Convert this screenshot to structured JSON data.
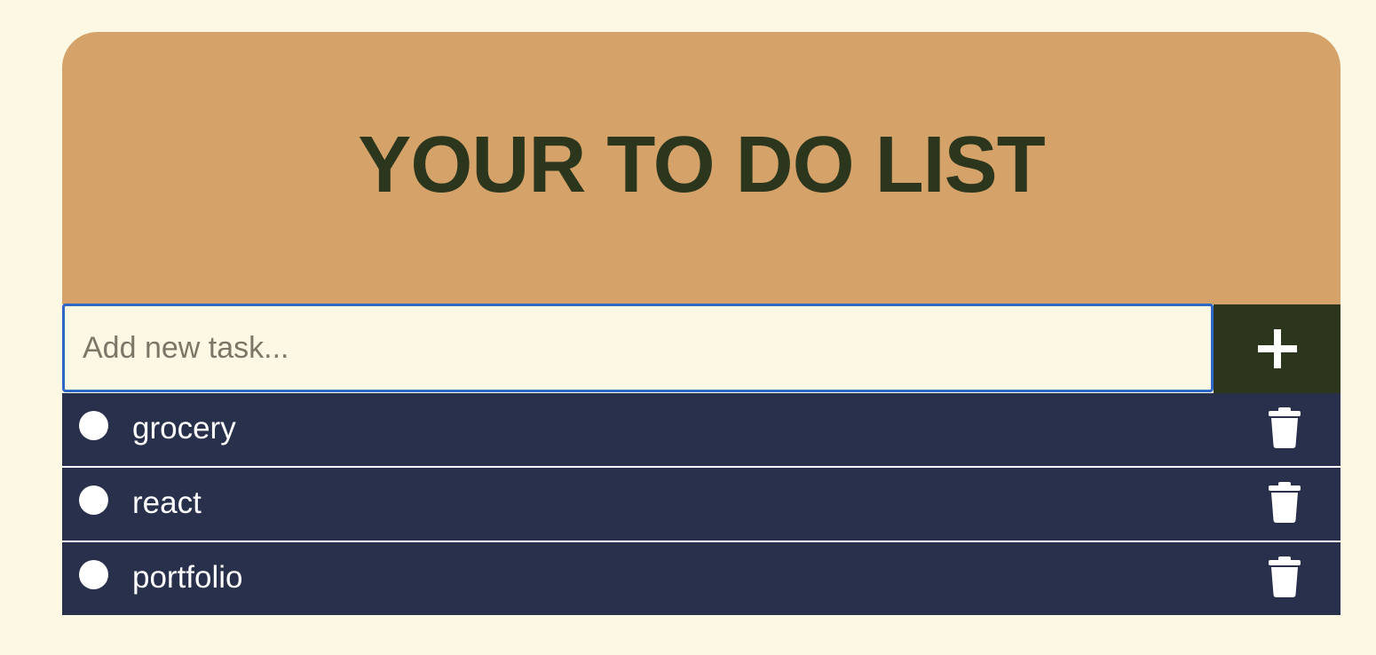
{
  "header": {
    "title": "YOUR TO DO LIST"
  },
  "new_task": {
    "placeholder": "Add new task...",
    "value": "",
    "add_icon": "plus-icon"
  },
  "tasks": [
    {
      "label": "grocery",
      "completed": false,
      "check_icon": "circle-icon",
      "delete_icon": "trash-icon"
    },
    {
      "label": "react",
      "completed": false,
      "check_icon": "circle-icon",
      "delete_icon": "trash-icon"
    },
    {
      "label": "portfolio",
      "completed": false,
      "check_icon": "circle-icon",
      "delete_icon": "trash-icon"
    }
  ],
  "colors": {
    "page_background": "#fdf8e3",
    "header_background": "#d5a26a",
    "title_text": "#2b361d",
    "add_button_background": "#2b361d",
    "task_background": "#28304b",
    "input_focus_border": "#2f67c6"
  }
}
